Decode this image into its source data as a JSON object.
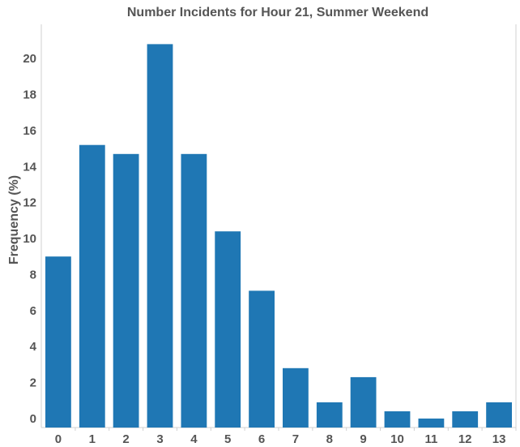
{
  "chart_data": {
    "type": "bar",
    "title": "Number Incidents for Hour 21, Summer Weekend",
    "xlabel": "",
    "ylabel": "Frequency (%)",
    "categories": [
      "0",
      "1",
      "2",
      "3",
      "4",
      "5",
      "6",
      "7",
      "8",
      "9",
      "10",
      "11",
      "12",
      "13"
    ],
    "values": [
      9.0,
      15.2,
      14.7,
      20.8,
      14.7,
      10.4,
      7.1,
      2.8,
      0.9,
      2.3,
      0.4,
      0.0,
      0.4,
      0.9
    ],
    "ylim": [
      -0.5,
      21.9
    ],
    "yticks": [
      0,
      2,
      4,
      6,
      8,
      10,
      12,
      14,
      16,
      18,
      20
    ],
    "bar_color": "#1f77b4",
    "grid": false
  }
}
